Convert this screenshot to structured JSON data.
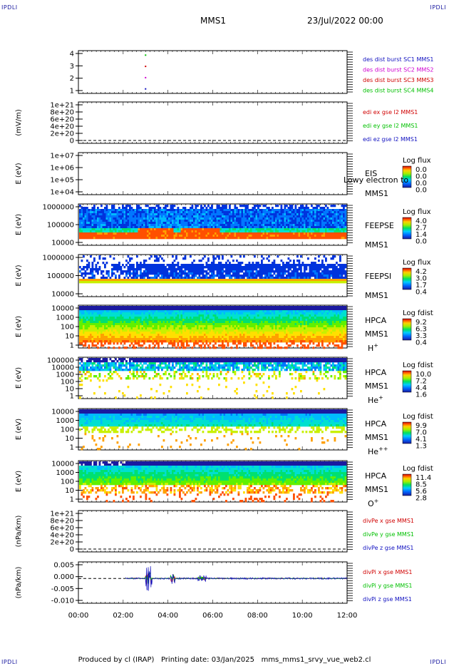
{
  "corner_label": "IPDLI",
  "header": {
    "spacecraft": "MMS1",
    "date": "23/Jul/2022 00:00"
  },
  "footer": {
    "produced_by": "Produced by cl (IRAP)",
    "printing": "Printing date: 03/Jan/2025",
    "file": "mms_mms1_srvy_vue_web2.cl"
  },
  "colors": {
    "blue": "#1010c0",
    "green": "#00c000",
    "red": "#d00000",
    "magenta": "#d000d0",
    "dark": "#000000"
  },
  "chart_data": [
    {
      "id": "des",
      "type": "scatter",
      "ylabel": "",
      "yticks": [
        "1",
        "2",
        "3",
        "4"
      ],
      "ylim": [
        0.6,
        4.4
      ],
      "series": [
        {
          "name": "des dist burst SC1 MMS1",
          "color": "#1010c0",
          "points": [
            [
              3.0,
              1
            ]
          ]
        },
        {
          "name": "des dist burst SC2 MMS2",
          "color": "#d000d0",
          "points": [
            [
              3.0,
              2
            ]
          ]
        },
        {
          "name": "des dist burst SC3 MMS3",
          "color": "#d00000",
          "points": [
            [
              3.0,
              3
            ]
          ]
        },
        {
          "name": "des dist burst SC4 MMS4",
          "color": "#00c000",
          "points": [
            [
              3.0,
              4
            ]
          ]
        }
      ]
    },
    {
      "id": "edi",
      "type": "line",
      "ylabel": "(mV/m)",
      "yticks": [
        "0",
        "2e+20",
        "4e+20",
        "6e+20",
        "8e+20",
        "1e+21"
      ],
      "ylim": [
        0,
        1e+21
      ],
      "series": [
        {
          "name": "edi ex gse l2 MMS1",
          "color": "#d00000"
        },
        {
          "name": "edi ey gse l2 MMS1",
          "color": "#00c000"
        },
        {
          "name": "edi ez gse l2 MMS1",
          "color": "#1010c0"
        }
      ]
    },
    {
      "id": "eis",
      "type": "heatmap",
      "ylabel": "E (eV)",
      "yticks": [
        "1e+04",
        "1e+05",
        "1e+06",
        "1e+07"
      ],
      "labels": [
        "EIS",
        "MMS1"
      ],
      "overlay": "Lowy electron to",
      "colorbar": {
        "title": "Log flux",
        "ticks": [
          "0.0",
          "0.0",
          "0.0",
          "0.0"
        ]
      }
    },
    {
      "id": "feeps_e",
      "type": "heatmap",
      "ylabel": "E (eV)",
      "yticks": [
        "10000",
        "100000",
        "1000000"
      ],
      "labels": [
        "FEEPSE",
        "MMS1"
      ],
      "colorbar": {
        "title": "Log flux",
        "ticks": [
          "4.0",
          "2.7",
          "1.4",
          "0.0"
        ]
      }
    },
    {
      "id": "feeps_i",
      "type": "heatmap",
      "ylabel": "E (eV)",
      "yticks": [
        "10000",
        "100000",
        "1000000"
      ],
      "labels": [
        "FEEPSI",
        "MMS1"
      ],
      "colorbar": {
        "title": "Log flux",
        "ticks": [
          "4.2",
          "3.0",
          "1.7",
          "0.4"
        ]
      }
    },
    {
      "id": "hpca_h",
      "type": "heatmap",
      "ylabel": "E (eV)",
      "yticks": [
        "1",
        "10",
        "100",
        "1000",
        "10000"
      ],
      "labels": [
        "HPCA",
        "MMS1"
      ],
      "species": "H",
      "charge": "+",
      "colorbar": {
        "title": "Log fdist",
        "ticks": [
          "9.2",
          "6.3",
          "3.3",
          "0.4"
        ]
      }
    },
    {
      "id": "hpca_he",
      "type": "heatmap",
      "ylabel": "E (eV)",
      "yticks": [
        "1",
        "10",
        "100",
        "1000",
        "10000",
        "100000"
      ],
      "labels": [
        "HPCA",
        "MMS1"
      ],
      "species": "He",
      "charge": "+",
      "colorbar": {
        "title": "Log fdist",
        "ticks": [
          "10.0",
          "7.2",
          "4.4",
          "1.6"
        ]
      }
    },
    {
      "id": "hpca_he2",
      "type": "heatmap",
      "ylabel": "E (eV)",
      "yticks": [
        "1",
        "10",
        "100",
        "1000",
        "10000"
      ],
      "labels": [
        "HPCA",
        "MMS1"
      ],
      "species": "He",
      "charge": "++",
      "colorbar": {
        "title": "Log fdist",
        "ticks": [
          "9.9",
          "7.0",
          "4.1",
          "1.3"
        ]
      }
    },
    {
      "id": "hpca_o",
      "type": "heatmap",
      "ylabel": "E (eV)",
      "yticks": [
        "1",
        "10",
        "100",
        "1000",
        "10000"
      ],
      "labels": [
        "HPCA",
        "MMS1"
      ],
      "species": "O",
      "charge": "+",
      "colorbar": {
        "title": "Log fdist",
        "ticks": [
          "11.4",
          "8.5",
          "5.6",
          "2.8"
        ]
      }
    },
    {
      "id": "divpe",
      "type": "line",
      "ylabel": "(nPa/km)",
      "yticks": [
        "0",
        "2e+20",
        "4e+20",
        "6e+20",
        "8e+20",
        "1e+21"
      ],
      "ylim": [
        0,
        1e+21
      ],
      "series": [
        {
          "name": "divPe x gse MMS1",
          "color": "#d00000"
        },
        {
          "name": "divPe y gse MMS1",
          "color": "#00c000"
        },
        {
          "name": "divPe z gse MMS1",
          "color": "#1010c0"
        }
      ]
    },
    {
      "id": "divpi",
      "type": "line",
      "ylabel": "(nPa/km)",
      "yticks": [
        "-0.010",
        "-0.005",
        "0.000",
        "0.005"
      ],
      "ylim": [
        -0.012,
        0.008
      ],
      "series": [
        {
          "name": "divPi x gse MMS1",
          "color": "#d00000"
        },
        {
          "name": "divPi y gse MMS1",
          "color": "#00c000"
        },
        {
          "name": "divPi z gse MMS1",
          "color": "#1010c0"
        }
      ]
    }
  ],
  "time_axis": {
    "ticks": [
      "00:00",
      "02:00",
      "04:00",
      "06:00",
      "08:00",
      "10:00",
      "12:00"
    ],
    "range_hours": [
      0,
      12
    ]
  }
}
